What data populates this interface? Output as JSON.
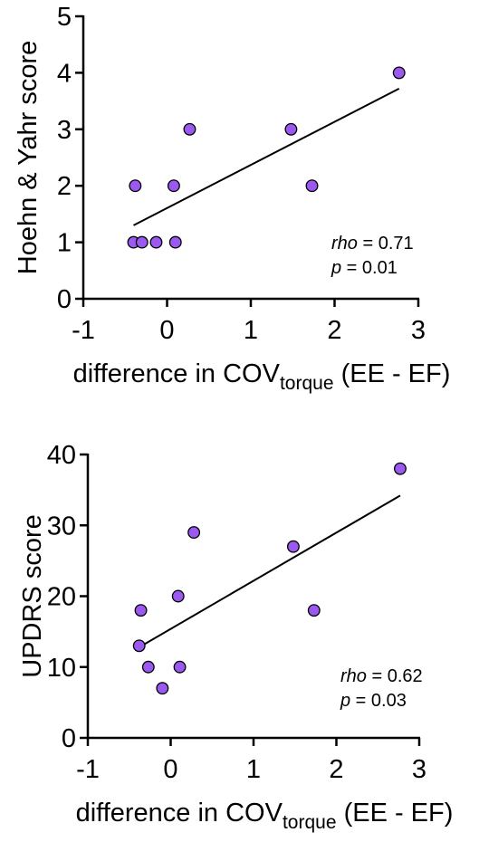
{
  "chart_data": [
    {
      "type": "scatter",
      "title": "",
      "xlabel": {
        "main": "difference in COV",
        "sub": "torque",
        "tail": " (EE - EF)"
      },
      "ylabel": "Hoehn & Yahr score",
      "xlim": [
        -1,
        3
      ],
      "ylim": [
        0,
        5
      ],
      "xticks": [
        "-1",
        "0",
        "1",
        "2",
        "3"
      ],
      "yticks": [
        "0",
        "1",
        "2",
        "3",
        "4",
        "5"
      ],
      "grid": false,
      "point_color": "#9b59f0",
      "points": [
        {
          "x": -0.4,
          "y": 1
        },
        {
          "x": -0.3,
          "y": 1
        },
        {
          "x": -0.13,
          "y": 1
        },
        {
          "x": 0.1,
          "y": 1
        },
        {
          "x": -0.38,
          "y": 2
        },
        {
          "x": 0.08,
          "y": 2
        },
        {
          "x": 0.27,
          "y": 3
        },
        {
          "x": 1.48,
          "y": 3
        },
        {
          "x": 1.73,
          "y": 2
        },
        {
          "x": 2.77,
          "y": 4
        }
      ],
      "fit_line": {
        "x": [
          -0.4,
          2.77
        ],
        "y": [
          1.3,
          3.72
        ]
      },
      "stats": {
        "rho_label": "rho",
        "rho_value": " = 0.71",
        "p_label": "p",
        "p_value": " = 0.01"
      }
    },
    {
      "type": "scatter",
      "title": "",
      "xlabel": {
        "main": "difference in COV",
        "sub": "torque",
        "tail": " (EE - EF)"
      },
      "ylabel": "UPDRS score",
      "xlim": [
        -1,
        3
      ],
      "ylim": [
        0,
        40
      ],
      "xticks": [
        "-1",
        "0",
        "1",
        "2",
        "3"
      ],
      "yticks": [
        "0",
        "10",
        "20",
        "30",
        "40"
      ],
      "grid": false,
      "point_color": "#9b59f0",
      "points": [
        {
          "x": -0.36,
          "y": 18
        },
        {
          "x": -0.38,
          "y": 13
        },
        {
          "x": -0.27,
          "y": 10
        },
        {
          "x": -0.1,
          "y": 7
        },
        {
          "x": 0.09,
          "y": 20
        },
        {
          "x": 0.11,
          "y": 10
        },
        {
          "x": 0.28,
          "y": 29
        },
        {
          "x": 1.48,
          "y": 27
        },
        {
          "x": 1.73,
          "y": 18
        },
        {
          "x": 2.77,
          "y": 38
        }
      ],
      "fit_line": {
        "x": [
          -0.38,
          2.77
        ],
        "y": [
          12.8,
          34.2
        ]
      },
      "stats": {
        "rho_label": "rho",
        "rho_value": " = 0.62",
        "p_label": "p",
        "p_value": " = 0.03"
      }
    }
  ]
}
